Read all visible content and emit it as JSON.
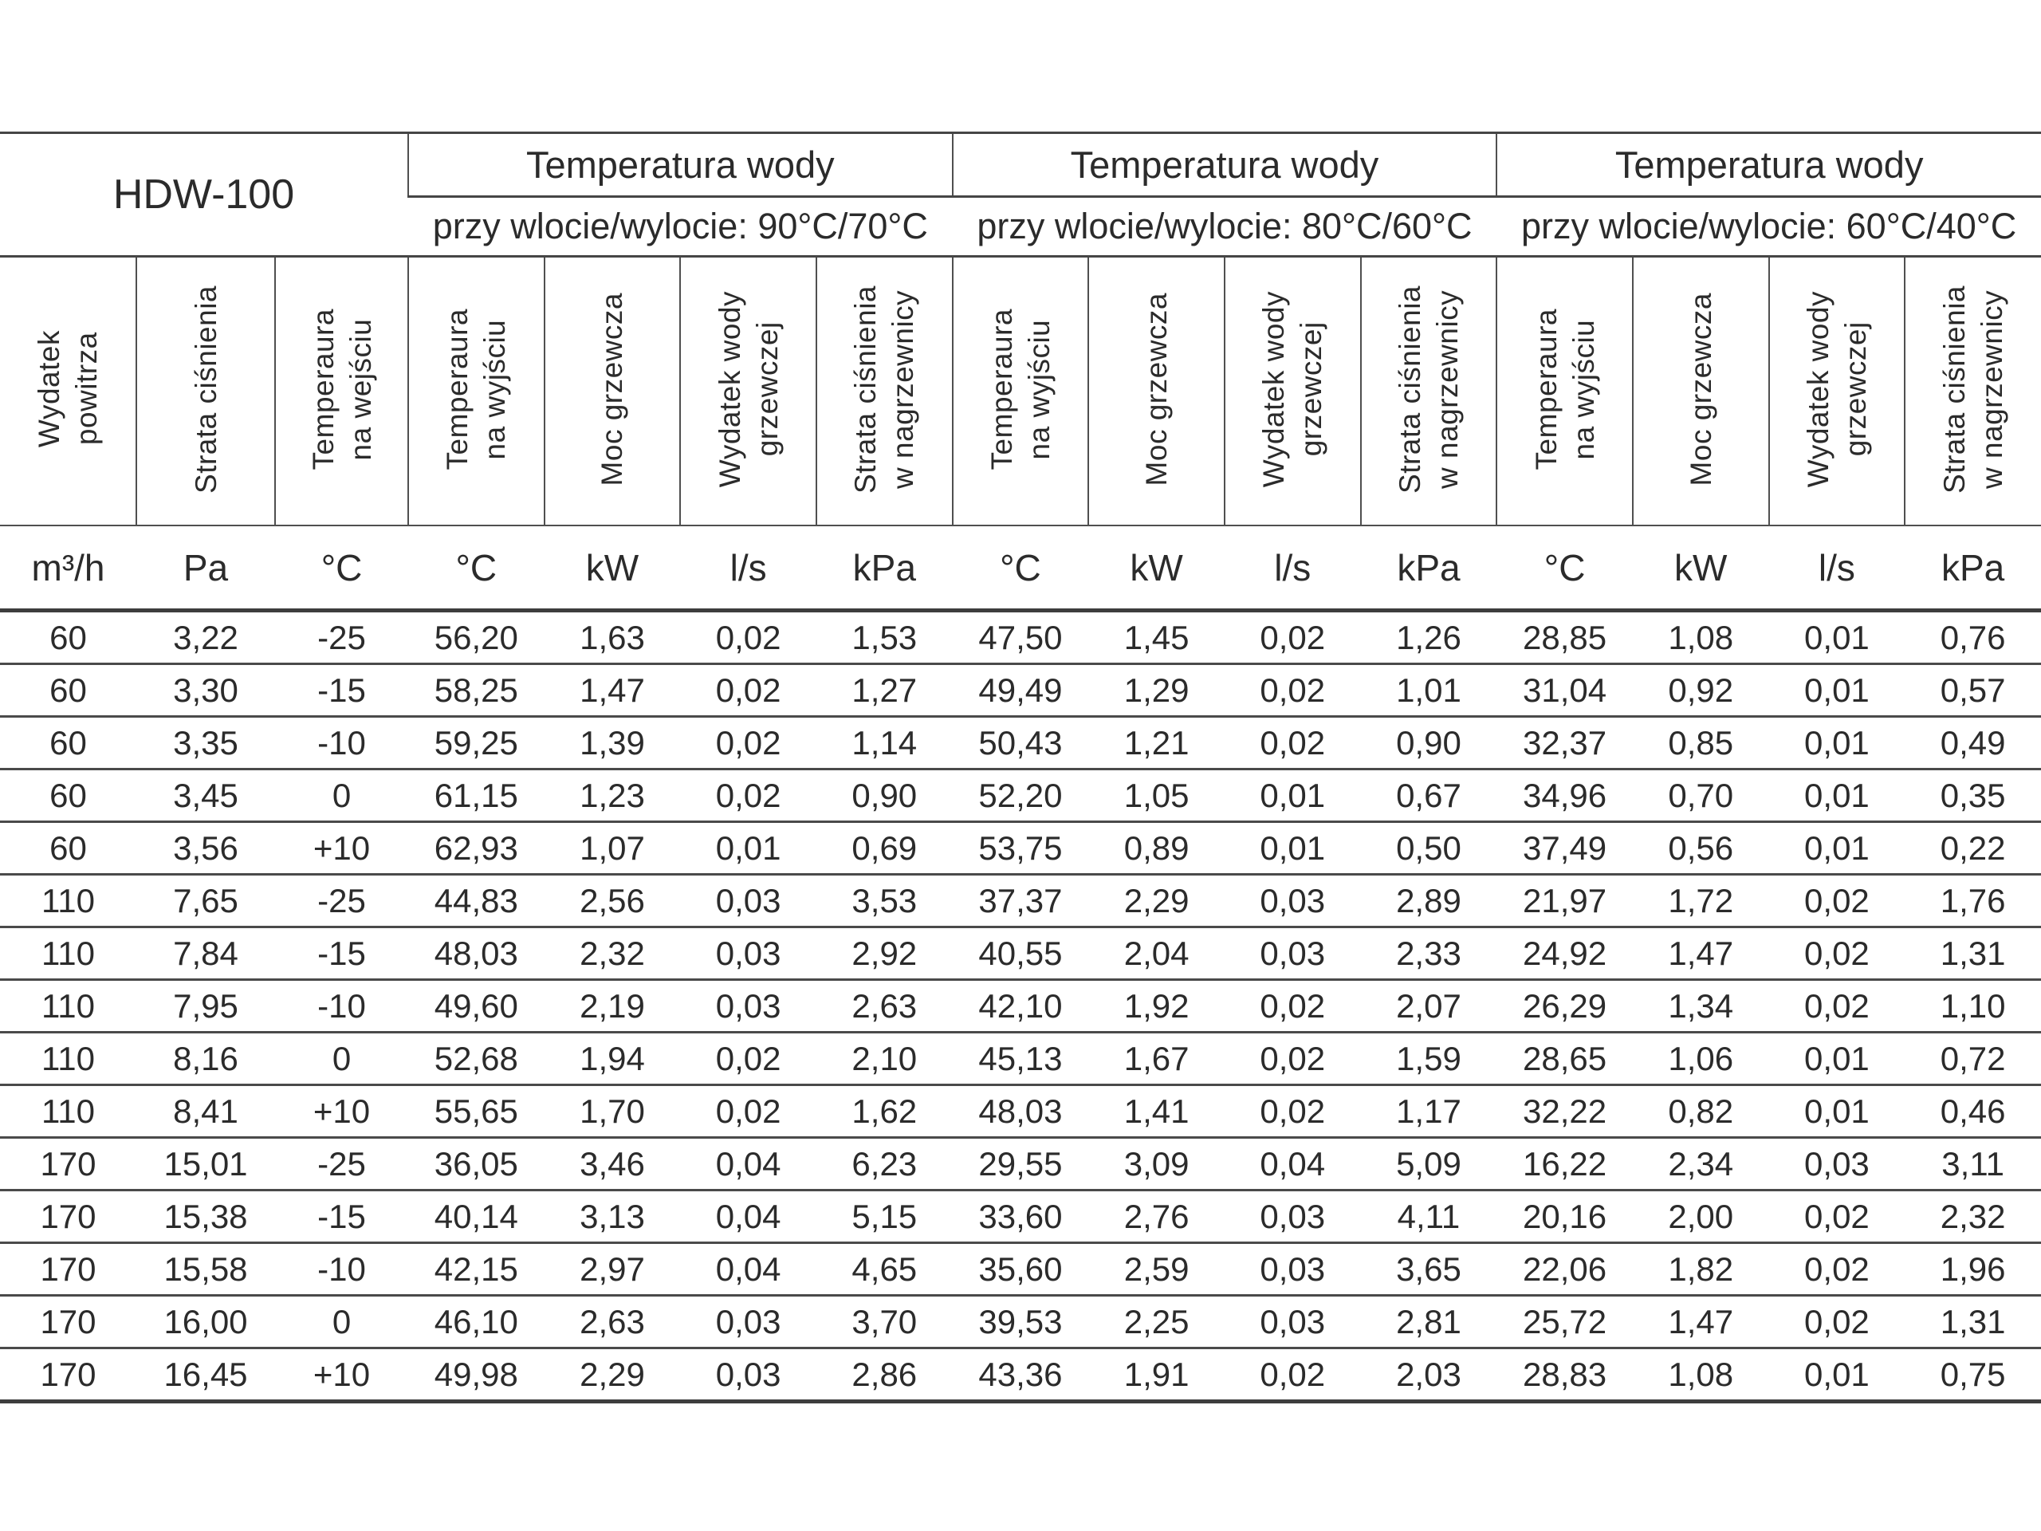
{
  "table": {
    "model": "HDW-100",
    "groups": [
      {
        "title": "Temperatura wody",
        "subtitle": "przy wlocie/wylocie: 90°C/70°C"
      },
      {
        "title": "Temperatura wody",
        "subtitle": "przy wlocie/wylocie: 80°C/60°C"
      },
      {
        "title": "Temperatura wody",
        "subtitle": "przy wlocie/wylocie: 60°C/40°C"
      }
    ],
    "base_columns": [
      {
        "label": "Wydatek\npowitrza",
        "unit": "m³/h"
      },
      {
        "label": "Strata ciśnienia",
        "unit": "Pa"
      },
      {
        "label": "Temperaura\nna wejściu",
        "unit": "°C"
      }
    ],
    "group_columns": [
      {
        "label": "Temperaura\nna wyjściu",
        "unit": "°C"
      },
      {
        "label": "Moc grzewcza",
        "unit": "kW"
      },
      {
        "label": "Wydatek wody\ngrzewczej",
        "unit": "l/s"
      },
      {
        "label": "Strata ciśnienia\nw nagrzewnicy",
        "unit": "kPa"
      }
    ],
    "rows": [
      [
        "60",
        "3,22",
        "-25",
        "56,20",
        "1,63",
        "0,02",
        "1,53",
        "47,50",
        "1,45",
        "0,02",
        "1,26",
        "28,85",
        "1,08",
        "0,01",
        "0,76"
      ],
      [
        "60",
        "3,30",
        "-15",
        "58,25",
        "1,47",
        "0,02",
        "1,27",
        "49,49",
        "1,29",
        "0,02",
        "1,01",
        "31,04",
        "0,92",
        "0,01",
        "0,57"
      ],
      [
        "60",
        "3,35",
        "-10",
        "59,25",
        "1,39",
        "0,02",
        "1,14",
        "50,43",
        "1,21",
        "0,02",
        "0,90",
        "32,37",
        "0,85",
        "0,01",
        "0,49"
      ],
      [
        "60",
        "3,45",
        "0",
        "61,15",
        "1,23",
        "0,02",
        "0,90",
        "52,20",
        "1,05",
        "0,01",
        "0,67",
        "34,96",
        "0,70",
        "0,01",
        "0,35"
      ],
      [
        "60",
        "3,56",
        "+10",
        "62,93",
        "1,07",
        "0,01",
        "0,69",
        "53,75",
        "0,89",
        "0,01",
        "0,50",
        "37,49",
        "0,56",
        "0,01",
        "0,22"
      ],
      [
        "110",
        "7,65",
        "-25",
        "44,83",
        "2,56",
        "0,03",
        "3,53",
        "37,37",
        "2,29",
        "0,03",
        "2,89",
        "21,97",
        "1,72",
        "0,02",
        "1,76"
      ],
      [
        "110",
        "7,84",
        "-15",
        "48,03",
        "2,32",
        "0,03",
        "2,92",
        "40,55",
        "2,04",
        "0,03",
        "2,33",
        "24,92",
        "1,47",
        "0,02",
        "1,31"
      ],
      [
        "110",
        "7,95",
        "-10",
        "49,60",
        "2,19",
        "0,03",
        "2,63",
        "42,10",
        "1,92",
        "0,02",
        "2,07",
        "26,29",
        "1,34",
        "0,02",
        "1,10"
      ],
      [
        "110",
        "8,16",
        "0",
        "52,68",
        "1,94",
        "0,02",
        "2,10",
        "45,13",
        "1,67",
        "0,02",
        "1,59",
        "28,65",
        "1,06",
        "0,01",
        "0,72"
      ],
      [
        "110",
        "8,41",
        "+10",
        "55,65",
        "1,70",
        "0,02",
        "1,62",
        "48,03",
        "1,41",
        "0,02",
        "1,17",
        "32,22",
        "0,82",
        "0,01",
        "0,46"
      ],
      [
        "170",
        "15,01",
        "-25",
        "36,05",
        "3,46",
        "0,04",
        "6,23",
        "29,55",
        "3,09",
        "0,04",
        "5,09",
        "16,22",
        "2,34",
        "0,03",
        "3,11"
      ],
      [
        "170",
        "15,38",
        "-15",
        "40,14",
        "3,13",
        "0,04",
        "5,15",
        "33,60",
        "2,76",
        "0,03",
        "4,11",
        "20,16",
        "2,00",
        "0,02",
        "2,32"
      ],
      [
        "170",
        "15,58",
        "-10",
        "42,15",
        "2,97",
        "0,04",
        "4,65",
        "35,60",
        "2,59",
        "0,03",
        "3,65",
        "22,06",
        "1,82",
        "0,02",
        "1,96"
      ],
      [
        "170",
        "16,00",
        "0",
        "46,10",
        "2,63",
        "0,03",
        "3,70",
        "39,53",
        "2,25",
        "0,03",
        "2,81",
        "25,72",
        "1,47",
        "0,02",
        "1,31"
      ],
      [
        "170",
        "16,45",
        "+10",
        "49,98",
        "2,29",
        "0,03",
        "2,86",
        "43,36",
        "1,91",
        "0,02",
        "2,03",
        "28,83",
        "1,08",
        "0,01",
        "0,75"
      ]
    ]
  }
}
